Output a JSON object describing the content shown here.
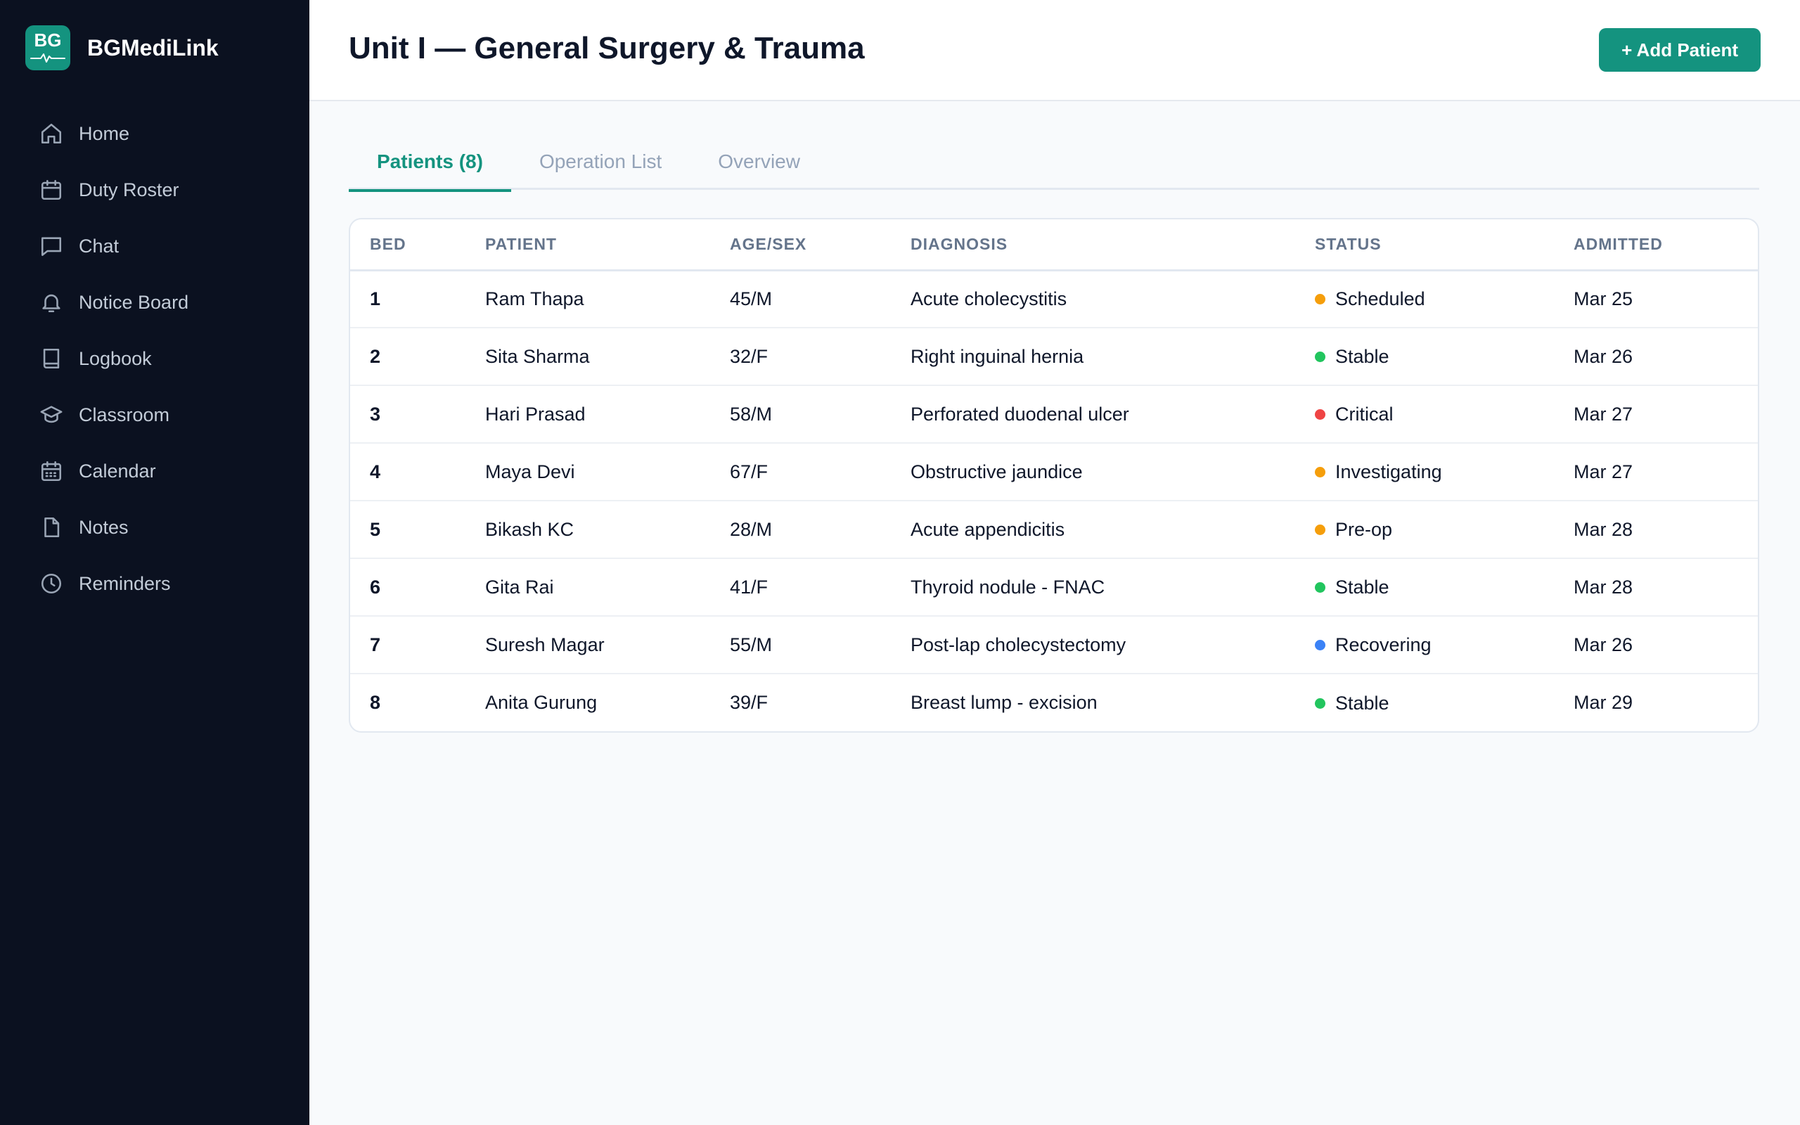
{
  "app": {
    "logo_text": "BG",
    "name": "BGMediLink"
  },
  "sidebar": {
    "items": [
      {
        "label": "Home",
        "icon": "home-icon"
      },
      {
        "label": "Duty Roster",
        "icon": "calendar-icon"
      },
      {
        "label": "Chat",
        "icon": "chat-icon"
      },
      {
        "label": "Notice Board",
        "icon": "bell-icon"
      },
      {
        "label": "Logbook",
        "icon": "book-icon"
      },
      {
        "label": "Classroom",
        "icon": "graduation-cap-icon"
      },
      {
        "label": "Calendar",
        "icon": "calendar-grid-icon"
      },
      {
        "label": "Notes",
        "icon": "document-icon"
      },
      {
        "label": "Reminders",
        "icon": "clock-icon"
      }
    ]
  },
  "header": {
    "title": "Unit I — General Surgery & Trauma",
    "add_button_label": "+ Add Patient"
  },
  "tabs": [
    {
      "label": "Patients (8)",
      "active": true
    },
    {
      "label": "Operation List",
      "active": false
    },
    {
      "label": "Overview",
      "active": false
    }
  ],
  "table": {
    "columns": [
      "BED",
      "PATIENT",
      "AGE/SEX",
      "DIAGNOSIS",
      "STATUS",
      "ADMITTED"
    ],
    "rows": [
      {
        "bed": "1",
        "patient": "Ram Thapa",
        "age_sex": "45/M",
        "diagnosis": "Acute cholecystitis",
        "status": "Scheduled",
        "status_color": "#f59e0b",
        "admitted": "Mar 25"
      },
      {
        "bed": "2",
        "patient": "Sita Sharma",
        "age_sex": "32/F",
        "diagnosis": "Right inguinal hernia",
        "status": "Stable",
        "status_color": "#22c55e",
        "admitted": "Mar 26"
      },
      {
        "bed": "3",
        "patient": "Hari Prasad",
        "age_sex": "58/M",
        "diagnosis": "Perforated duodenal ulcer",
        "status": "Critical",
        "status_color": "#ef4444",
        "admitted": "Mar 27"
      },
      {
        "bed": "4",
        "patient": "Maya Devi",
        "age_sex": "67/F",
        "diagnosis": "Obstructive jaundice",
        "status": "Investigating",
        "status_color": "#f59e0b",
        "admitted": "Mar 27"
      },
      {
        "bed": "5",
        "patient": "Bikash KC",
        "age_sex": "28/M",
        "diagnosis": "Acute appendicitis",
        "status": "Pre-op",
        "status_color": "#f59e0b",
        "admitted": "Mar 28"
      },
      {
        "bed": "6",
        "patient": "Gita Rai",
        "age_sex": "41/F",
        "diagnosis": "Thyroid nodule - FNAC",
        "status": "Stable",
        "status_color": "#22c55e",
        "admitted": "Mar 28"
      },
      {
        "bed": "7",
        "patient": "Suresh Magar",
        "age_sex": "55/M",
        "diagnosis": "Post-lap cholecystectomy",
        "status": "Recovering",
        "status_color": "#3b82f6",
        "admitted": "Mar 26"
      },
      {
        "bed": "8",
        "patient": "Anita Gurung",
        "age_sex": "39/F",
        "diagnosis": "Breast lump - excision",
        "status": "Stable",
        "status_color": "#22c55e",
        "admitted": "Mar 29"
      }
    ]
  },
  "colors": {
    "accent": "#14937f",
    "sidebar_bg": "#0b1120"
  }
}
